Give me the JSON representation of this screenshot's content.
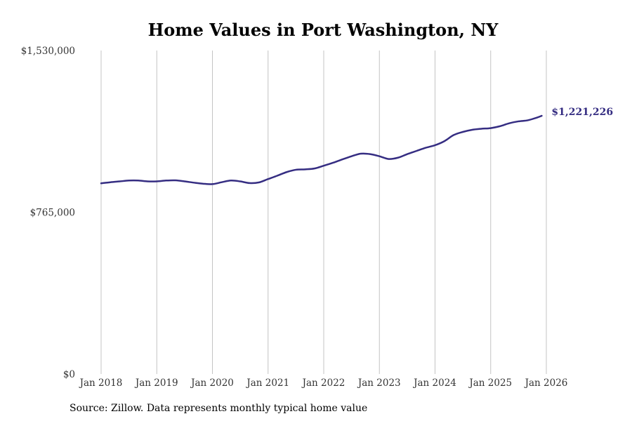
{
  "chart_data": {
    "type": "line",
    "title": "Home Values in Port Washington, NY",
    "xlabel": "",
    "ylabel": "",
    "source": "Source: Zillow. Data represents monthly typical home value",
    "x_ticks": [
      "Jan 2018",
      "Jan 2019",
      "Jan 2020",
      "Jan 2021",
      "Jan 2022",
      "Jan 2023",
      "Jan 2024",
      "Jan 2025",
      "Jan 2026"
    ],
    "y_ticks": [
      {
        "value": 0,
        "label": "$0"
      },
      {
        "value": 765000,
        "label": "$765,000"
      },
      {
        "value": 1530000,
        "label": "$1,530,000"
      }
    ],
    "ylim": [
      0,
      1530000
    ],
    "grid": {
      "vertical": true,
      "horizontal": false
    },
    "line_color": "#352d82",
    "end_label": "$1,221,226",
    "series": [
      {
        "x": [
          "2018-01",
          "2018-03",
          "2018-05",
          "2018-07",
          "2018-09",
          "2018-11",
          "2019-01",
          "2019-03",
          "2019-05",
          "2019-07",
          "2019-09",
          "2019-11",
          "2020-01",
          "2020-03",
          "2020-05",
          "2020-07",
          "2020-09",
          "2020-11",
          "2021-01",
          "2021-03",
          "2021-05",
          "2021-07",
          "2021-09",
          "2021-11",
          "2022-01",
          "2022-03",
          "2022-05",
          "2022-07",
          "2022-09",
          "2022-11",
          "2023-01",
          "2023-03",
          "2023-05",
          "2023-07",
          "2023-09",
          "2023-11",
          "2024-01",
          "2024-03",
          "2024-05",
          "2024-07",
          "2024-09",
          "2024-11",
          "2025-01",
          "2025-03",
          "2025-05",
          "2025-07",
          "2025-09",
          "2025-11",
          "2025-12"
        ],
        "values": [
          902000,
          907000,
          911000,
          915000,
          915000,
          911000,
          911000,
          915000,
          916000,
          911000,
          905000,
          900000,
          898000,
          907000,
          915000,
          911000,
          903000,
          906000,
          922000,
          938000,
          955000,
          966000,
          968000,
          972000,
          985000,
          999000,
          1015000,
          1030000,
          1042000,
          1040000,
          1030000,
          1017000,
          1023000,
          1040000,
          1055000,
          1070000,
          1082000,
          1101000,
          1130000,
          1145000,
          1155000,
          1160000,
          1163000,
          1172000,
          1186000,
          1195000,
          1200000,
          1213000,
          1221226
        ]
      }
    ]
  }
}
